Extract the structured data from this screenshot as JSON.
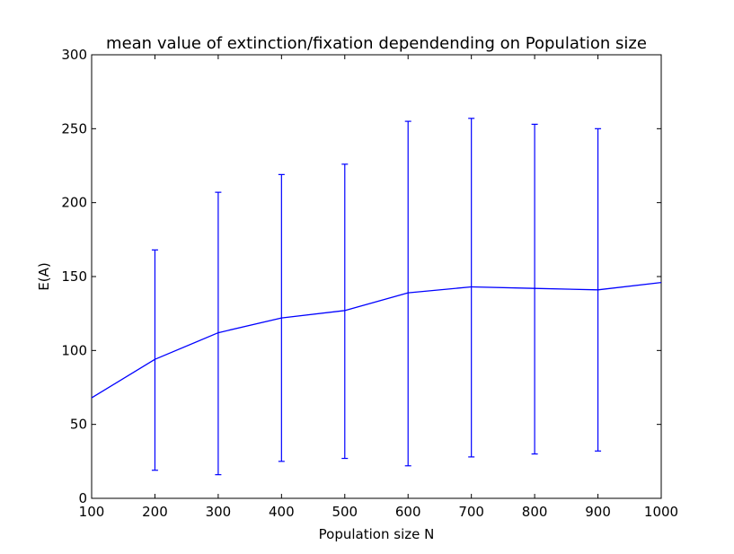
{
  "chart_data": {
    "type": "line",
    "title": "mean value of extinction/fixation dependending on Population size",
    "xlabel": "Population size N",
    "ylabel": "E(A)",
    "xlim": [
      100,
      1000
    ],
    "ylim": [
      0,
      300
    ],
    "xticks": [
      100,
      200,
      300,
      400,
      500,
      600,
      700,
      800,
      900,
      1000
    ],
    "yticks": [
      0,
      50,
      100,
      150,
      200,
      250,
      300
    ],
    "grid": false,
    "series": [
      {
        "color": "#0000ff",
        "x": [
          100,
          200,
          300,
          400,
          500,
          600,
          700,
          800,
          900,
          1000
        ],
        "y": [
          68,
          94,
          112,
          122,
          127,
          139,
          143,
          142,
          141,
          146
        ],
        "err_low": [
          null,
          19,
          16,
          25,
          27,
          22,
          28,
          30,
          32,
          null
        ],
        "err_high": [
          null,
          168,
          207,
          219,
          226,
          255,
          257,
          253,
          250,
          null
        ]
      }
    ]
  }
}
